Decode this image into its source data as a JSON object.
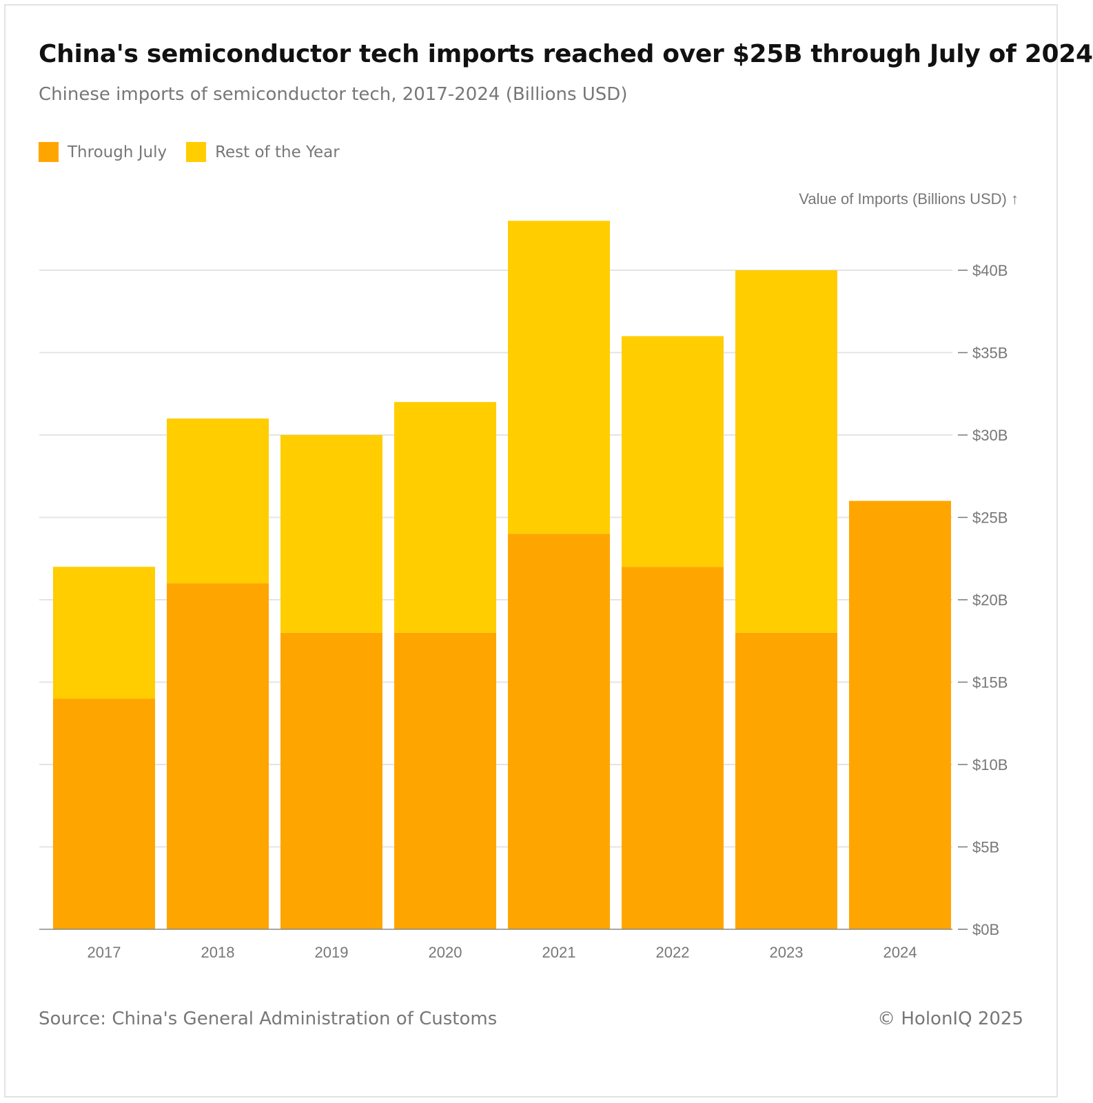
{
  "header": {
    "title": "China's semiconductor tech imports reached over $25B through July of 2024",
    "subtitle": "Chinese imports of semiconductor tech, 2017-2024 (Billions USD)"
  },
  "legend": {
    "items": [
      {
        "label": "Through July",
        "color": "#ffa500"
      },
      {
        "label": "Rest of the Year",
        "color": "#ffcd00"
      }
    ]
  },
  "footer": {
    "source": "Source: China's General Administration of Customs",
    "copyright": "© HolonIQ 2025"
  },
  "chart_data": {
    "type": "bar",
    "stacked": true,
    "title": "China's semiconductor tech imports reached over $25B through July of 2024",
    "subtitle": "Chinese imports of semiconductor tech, 2017-2024 (Billions USD)",
    "xlabel": "",
    "ylabel": "Value of Imports (Billions USD) ↑",
    "ylim": [
      0,
      43
    ],
    "y_ticks": [
      0,
      5,
      10,
      15,
      20,
      25,
      30,
      35,
      40
    ],
    "y_tick_labels": [
      "$0B",
      "$5B",
      "$10B",
      "$15B",
      "$20B",
      "$25B",
      "$30B",
      "$35B",
      "$40B"
    ],
    "y_axis_position": "right",
    "grid": true,
    "legend_position": "top-left",
    "categories": [
      "2017",
      "2018",
      "2019",
      "2020",
      "2021",
      "2022",
      "2023",
      "2024"
    ],
    "series": [
      {
        "name": "Through July",
        "color": "#ffa500",
        "values": [
          14,
          21,
          18,
          18,
          24,
          22,
          18,
          26
        ]
      },
      {
        "name": "Rest of the Year",
        "color": "#ffcd00",
        "values": [
          8,
          10,
          12,
          14,
          19,
          14,
          22,
          0
        ]
      }
    ]
  }
}
